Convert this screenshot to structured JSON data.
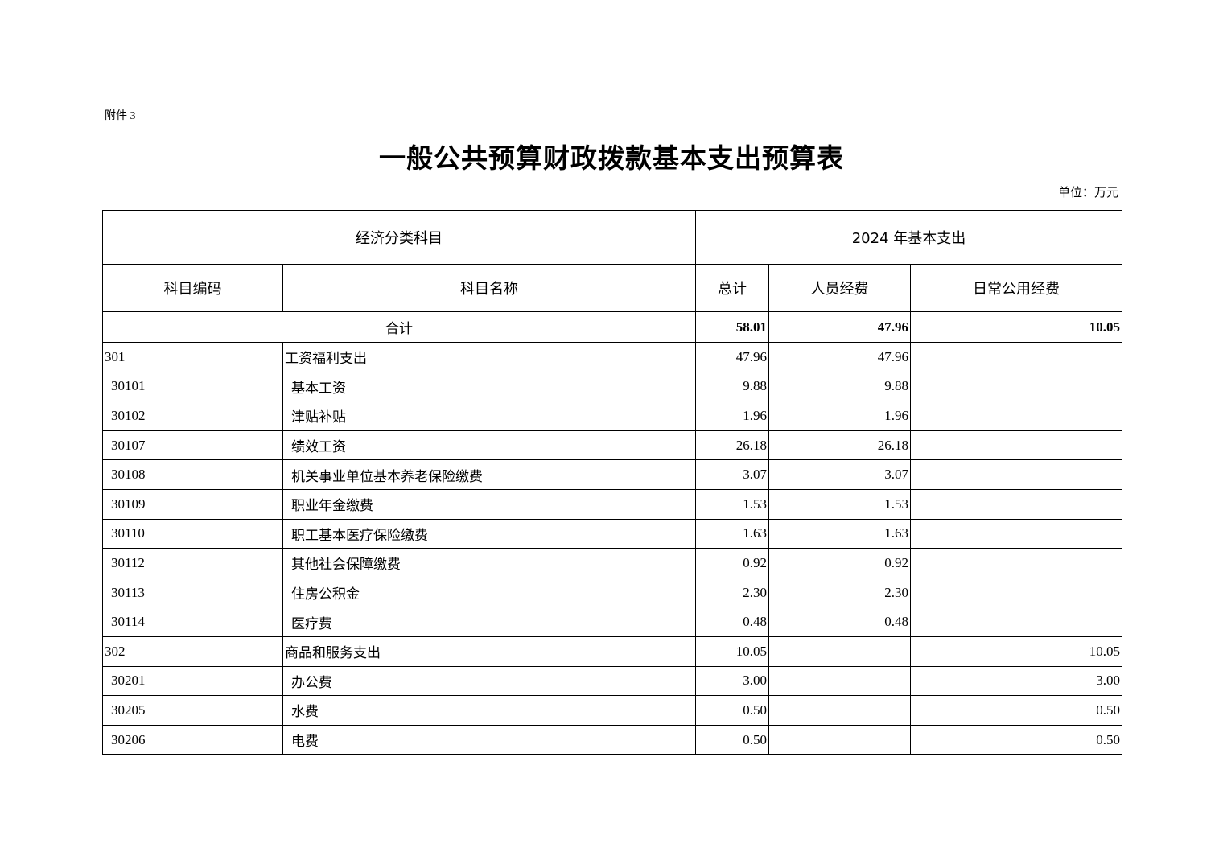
{
  "attachment": "附件 3",
  "title": "一般公共预算财政拨款基本支出预算表",
  "unit": "单位：万元",
  "header": {
    "group_left": "经济分类科目",
    "group_right": "2024 年基本支出",
    "code": "科目编码",
    "name": "科目名称",
    "total": "总计",
    "personnel": "人员经费",
    "public": "日常公用经费"
  },
  "total_row": {
    "label": "合计",
    "total": "58.01",
    "personnel": "47.96",
    "public": "10.05"
  },
  "rows": [
    {
      "code": "301",
      "name": "工资福利支出",
      "total": "47.96",
      "personnel": "47.96",
      "public": "",
      "level": 1
    },
    {
      "code": "30101",
      "name": "基本工资",
      "total": "9.88",
      "personnel": "9.88",
      "public": "",
      "level": 2
    },
    {
      "code": "30102",
      "name": "津贴补贴",
      "total": "1.96",
      "personnel": "1.96",
      "public": "",
      "level": 2
    },
    {
      "code": "30107",
      "name": "绩效工资",
      "total": "26.18",
      "personnel": "26.18",
      "public": "",
      "level": 2
    },
    {
      "code": "30108",
      "name": "机关事业单位基本养老保险缴费",
      "total": "3.07",
      "personnel": "3.07",
      "public": "",
      "level": 2
    },
    {
      "code": "30109",
      "name": "职业年金缴费",
      "total": "1.53",
      "personnel": "1.53",
      "public": "",
      "level": 2
    },
    {
      "code": "30110",
      "name": "职工基本医疗保险缴费",
      "total": "1.63",
      "personnel": "1.63",
      "public": "",
      "level": 2
    },
    {
      "code": "30112",
      "name": "其他社会保障缴费",
      "total": "0.92",
      "personnel": "0.92",
      "public": "",
      "level": 2
    },
    {
      "code": "30113",
      "name": "住房公积金",
      "total": "2.30",
      "personnel": "2.30",
      "public": "",
      "level": 2
    },
    {
      "code": "30114",
      "name": "医疗费",
      "total": "0.48",
      "personnel": "0.48",
      "public": "",
      "level": 2
    },
    {
      "code": "302",
      "name": "商品和服务支出",
      "total": "10.05",
      "personnel": "",
      "public": "10.05",
      "level": 1
    },
    {
      "code": "30201",
      "name": "办公费",
      "total": "3.00",
      "personnel": "",
      "public": "3.00",
      "level": 2
    },
    {
      "code": "30205",
      "name": "水费",
      "total": "0.50",
      "personnel": "",
      "public": "0.50",
      "level": 2
    },
    {
      "code": "30206",
      "name": "电费",
      "total": "0.50",
      "personnel": "",
      "public": "0.50",
      "level": 2
    }
  ]
}
